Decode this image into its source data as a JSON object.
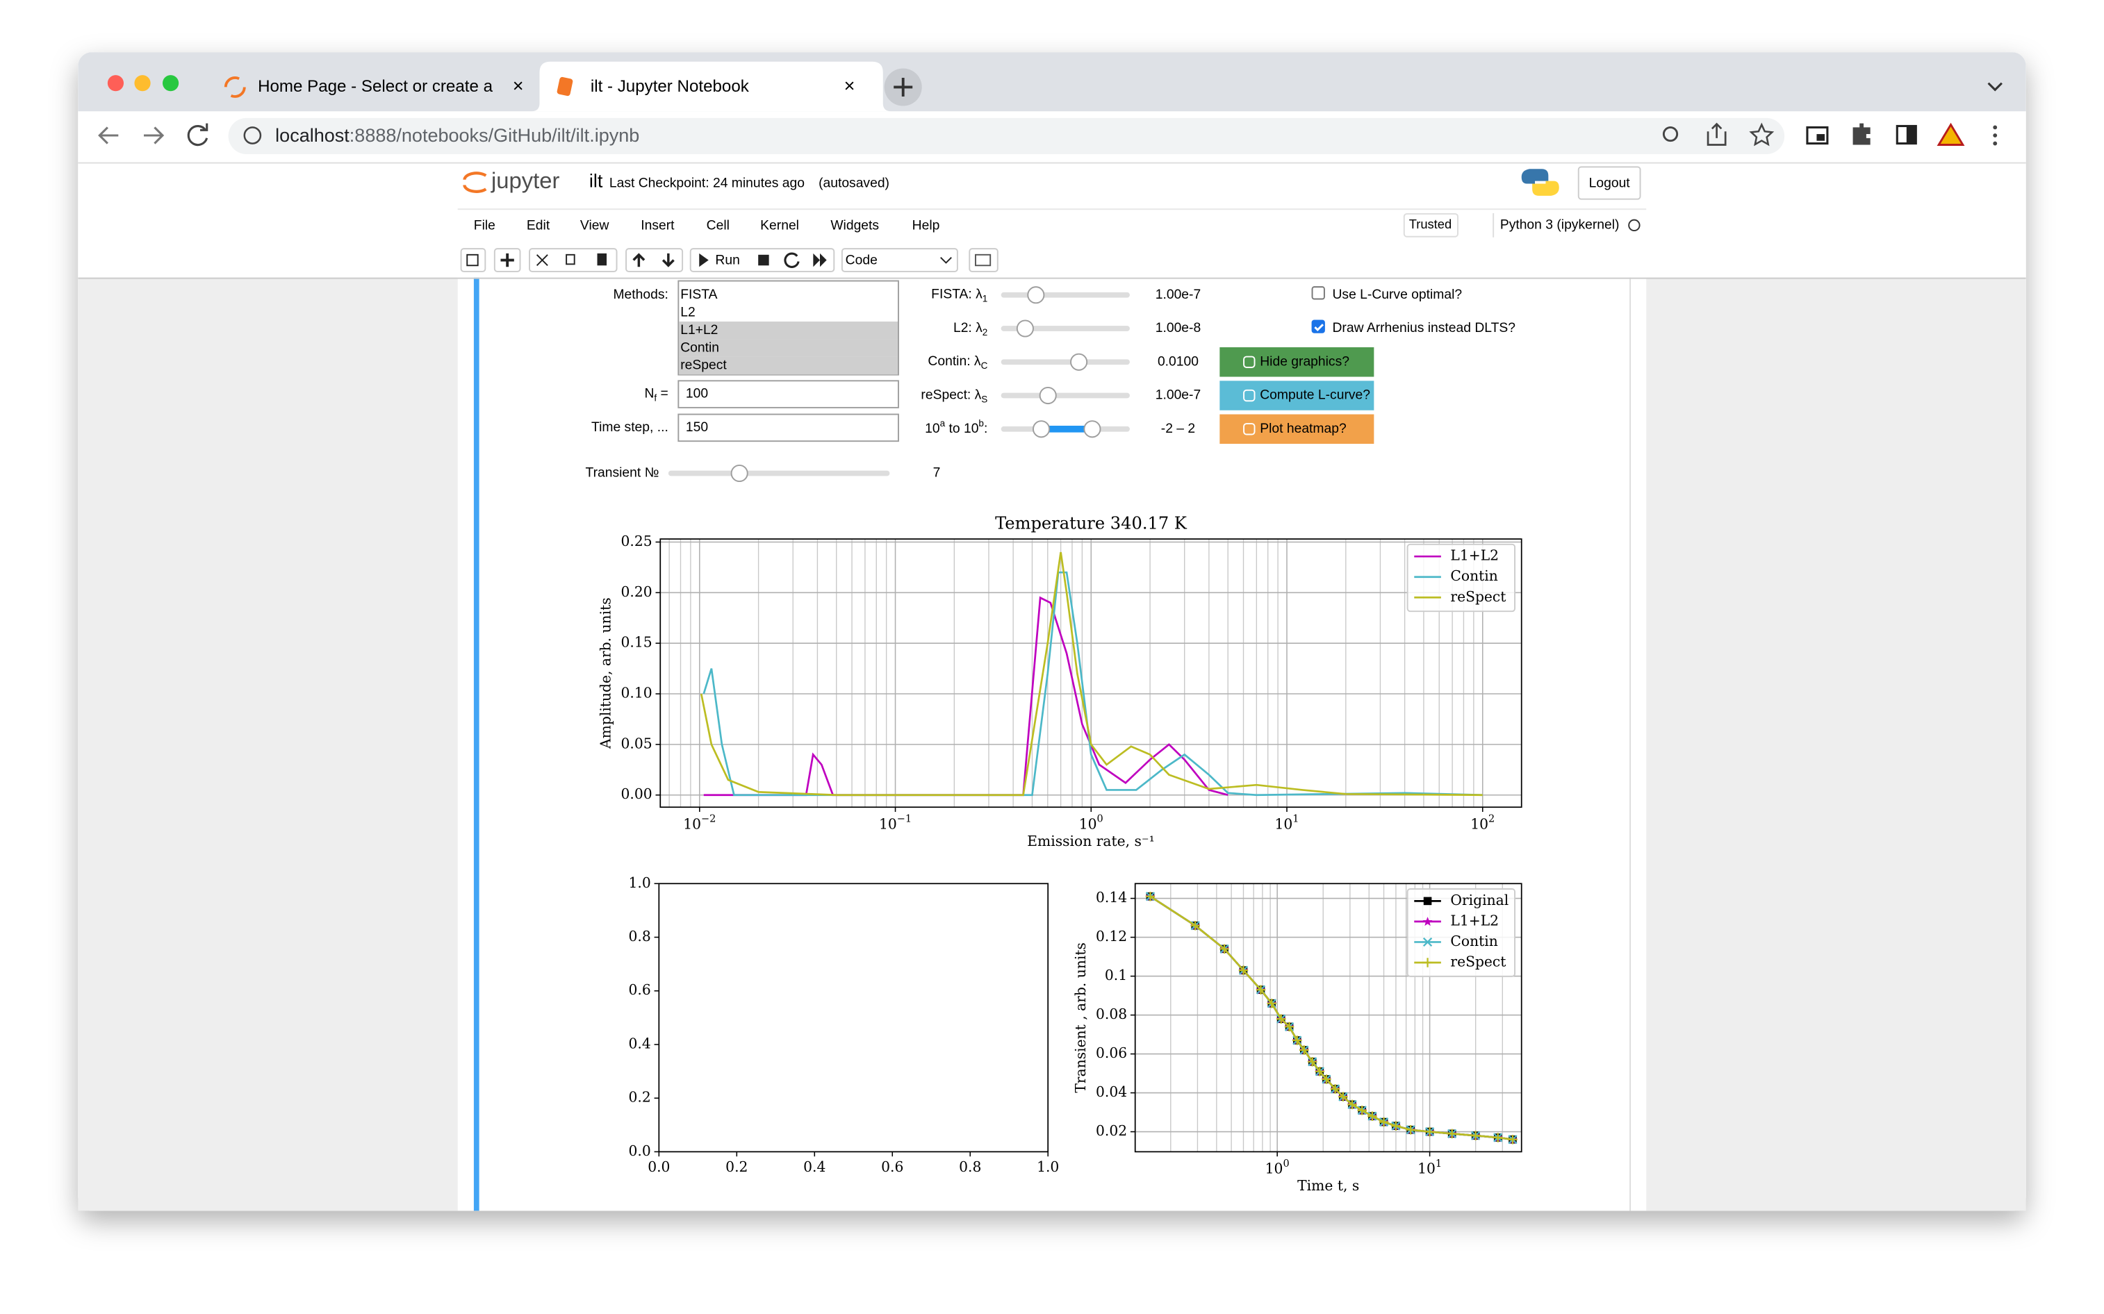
{
  "browser": {
    "tabs": [
      "Home Page - Select or create a",
      "ilt - Jupyter Notebook"
    ],
    "url_host": "localhost",
    "url_rest": ":8888/notebooks/GitHub/ilt/ilt.ipynb"
  },
  "header": {
    "logo": "jupyter",
    "notebook": "ilt",
    "checkpoint": "Last Checkpoint: 24 minutes ago",
    "autosaved": "(autosaved)",
    "logout": "Logout"
  },
  "menu": [
    "File",
    "Edit",
    "View",
    "Insert",
    "Cell",
    "Kernel",
    "Widgets",
    "Help"
  ],
  "kernel": {
    "trusted": "Trusted",
    "name": "Python 3 (ipykernel)"
  },
  "toolbar": {
    "run": "Run",
    "cell_type": "Code"
  },
  "widgets": {
    "methods": {
      "label": "Methods:",
      "options": [
        "FISTA",
        "L2",
        "L1+L2",
        "Contin",
        "reSpect"
      ],
      "selected": [
        false,
        false,
        true,
        true,
        true
      ]
    },
    "inputs": [
      {
        "label_parts": [
          "N",
          "f",
          " ="
        ],
        "script": "sub",
        "value": "100"
      },
      {
        "label_parts": [
          "Time step, ..."
        ],
        "value": "150"
      }
    ],
    "sliders": [
      {
        "label_parts": [
          "FISTA: λ",
          "1"
        ],
        "script": "sub",
        "readout": "1.00e-7"
      },
      {
        "label_parts": [
          "L2: λ",
          "2"
        ],
        "script": "sub",
        "readout": "1.00e-8"
      },
      {
        "label_parts": [
          "Contin: λ",
          "C"
        ],
        "script": "sub",
        "readout": "0.0100"
      },
      {
        "label_parts": [
          "reSpect: λ",
          "S"
        ],
        "script": "sub",
        "readout": "1.00e-7"
      },
      {
        "label_parts": [
          "10",
          "a",
          " to 10",
          "b",
          ":"
        ],
        "script": "sup",
        "readout": "-2 – 2",
        "range": true
      }
    ],
    "checkboxes": [
      {
        "label": "Use L-Curve optimal?",
        "checked": false
      },
      {
        "label": "Draw Arrhenius instead DLTS?",
        "checked": true
      }
    ],
    "buttons": [
      {
        "label": "Hide graphics?",
        "color": "#4f9a4f"
      },
      {
        "label": "Compute L-curve?",
        "color": "#5bbcd6"
      },
      {
        "label": "Plot heatmap?",
        "color": "#f2a14a"
      }
    ],
    "transient": {
      "label": "Transient №",
      "readout": "7"
    }
  },
  "chart_data": [
    {
      "type": "line",
      "title": "Temperature 340.17 K",
      "xlabel": "Emission rate, s⁻¹",
      "ylabel": "Amplitude, arb. units",
      "xscale": "log",
      "xlim": [
        0.0063,
        158
      ],
      "ylim": [
        -0.012,
        0.253
      ],
      "grid": true,
      "legend": "upper right",
      "xticks": [
        {
          "value": 0.01,
          "label": "10",
          "exp": "−2"
        },
        {
          "value": 0.1,
          "label": "10",
          "exp": "−1"
        },
        {
          "value": 1,
          "label": "10",
          "exp": "0"
        },
        {
          "value": 10,
          "label": "10",
          "exp": "1"
        },
        {
          "value": 100,
          "label": "10",
          "exp": "2"
        }
      ],
      "yticks": [
        {
          "value": 0,
          "label": "0.00"
        },
        {
          "value": 0.05,
          "label": "0.05"
        },
        {
          "value": 0.1,
          "label": "0.10"
        },
        {
          "value": 0.15,
          "label": "0.15"
        },
        {
          "value": 0.2,
          "label": "0.20"
        },
        {
          "value": 0.25,
          "label": "0.25"
        }
      ],
      "series": [
        {
          "name": "L1+L2",
          "color": "#bf00bf",
          "x": [
            0.0105,
            0.035,
            0.038,
            0.042,
            0.048,
            0.45,
            0.55,
            0.62,
            0.75,
            0.9,
            1.1,
            1.5,
            2.0,
            2.5,
            3.0,
            4,
            5
          ],
          "values": [
            0,
            0,
            0.04,
            0.03,
            0,
            0,
            0.195,
            0.19,
            0.14,
            0.07,
            0.03,
            0.012,
            0.035,
            0.05,
            0.035,
            0.005,
            0
          ]
        },
        {
          "name": "Contin",
          "color": "#4cb8c8",
          "x": [
            0.0105,
            0.0115,
            0.013,
            0.015,
            0.5,
            0.6,
            0.68,
            0.75,
            0.85,
            1.0,
            1.2,
            1.7,
            2.3,
            3.0,
            4,
            5,
            7,
            40,
            100
          ],
          "values": [
            0.1,
            0.125,
            0.05,
            0,
            0,
            0.12,
            0.22,
            0.22,
            0.15,
            0.04,
            0.005,
            0.005,
            0.025,
            0.04,
            0.02,
            0.002,
            0,
            0.002,
            0
          ]
        },
        {
          "name": "reSpect",
          "color": "#bcbd22",
          "x": [
            0.0102,
            0.0115,
            0.014,
            0.02,
            0.05,
            0.45,
            0.6,
            0.7,
            0.75,
            0.85,
            1.0,
            1.2,
            1.6,
            2.0,
            2.5,
            4,
            7,
            12,
            20,
            100
          ],
          "values": [
            0.1,
            0.05,
            0.015,
            0.003,
            0,
            0,
            0.15,
            0.24,
            0.2,
            0.12,
            0.05,
            0.03,
            0.048,
            0.04,
            0.02,
            0.006,
            0.01,
            0.005,
            0.001,
            0
          ]
        }
      ]
    },
    {
      "type": "line",
      "xscale": "linear",
      "xlim": [
        0,
        1
      ],
      "ylim": [
        0,
        1
      ],
      "grid": false,
      "xticks": [
        {
          "value": 0,
          "label": "0.0"
        },
        {
          "value": 0.2,
          "label": "0.2"
        },
        {
          "value": 0.4,
          "label": "0.4"
        },
        {
          "value": 0.6,
          "label": "0.6"
        },
        {
          "value": 0.8,
          "label": "0.8"
        },
        {
          "value": 1,
          "label": "1.0"
        }
      ],
      "yticks": [
        {
          "value": 0,
          "label": "0.0"
        },
        {
          "value": 0.2,
          "label": "0.2"
        },
        {
          "value": 0.4,
          "label": "0.4"
        },
        {
          "value": 0.6,
          "label": "0.6"
        },
        {
          "value": 0.8,
          "label": "0.8"
        },
        {
          "value": 1,
          "label": "1.0"
        }
      ],
      "series": []
    },
    {
      "type": "line",
      "xlabel": "Time t, s",
      "ylabel": "Transient , arb. units",
      "xscale": "log",
      "xlim": [
        0.117,
        40
      ],
      "ylim": [
        0.0097,
        0.1476
      ],
      "grid": true,
      "legend": "upper right",
      "xticks": [
        {
          "value": 1,
          "label": "10",
          "exp": "0"
        },
        {
          "value": 10,
          "label": "10",
          "exp": "1"
        }
      ],
      "yticks": [
        0.02,
        0.04,
        0.06,
        0.08,
        0.1,
        0.12,
        0.14
      ],
      "x": [
        0.147,
        0.29,
        0.45,
        0.6,
        0.78,
        0.92,
        1.06,
        1.2,
        1.35,
        1.5,
        1.7,
        1.9,
        2.1,
        2.4,
        2.7,
        3.1,
        3.6,
        4.2,
        5,
        6,
        7.5,
        10,
        14,
        20,
        28,
        35
      ],
      "series": [
        {
          "name": "Original",
          "color": "#000000",
          "marker": "square",
          "values": [
            0.141,
            0.126,
            0.114,
            0.103,
            0.093,
            0.086,
            0.078,
            0.074,
            0.067,
            0.062,
            0.056,
            0.051,
            0.047,
            0.042,
            0.038,
            0.034,
            0.031,
            0.028,
            0.025,
            0.023,
            0.021,
            0.02,
            0.019,
            0.018,
            0.017,
            0.016
          ]
        },
        {
          "name": "L1+L2",
          "color": "#bf00bf",
          "marker": "star",
          "values": [
            0.141,
            0.126,
            0.114,
            0.103,
            0.093,
            0.086,
            0.078,
            0.074,
            0.067,
            0.062,
            0.056,
            0.051,
            0.047,
            0.042,
            0.038,
            0.034,
            0.031,
            0.028,
            0.025,
            0.023,
            0.021,
            0.02,
            0.019,
            0.018,
            0.017,
            0.016
          ]
        },
        {
          "name": "Contin",
          "color": "#4cb8c8",
          "marker": "x",
          "values": [
            0.141,
            0.126,
            0.114,
            0.103,
            0.093,
            0.086,
            0.078,
            0.074,
            0.067,
            0.062,
            0.056,
            0.051,
            0.047,
            0.042,
            0.038,
            0.034,
            0.031,
            0.028,
            0.025,
            0.023,
            0.021,
            0.02,
            0.019,
            0.018,
            0.017,
            0.016
          ]
        },
        {
          "name": "reSpect",
          "color": "#bcbd22",
          "marker": "plus",
          "values": [
            0.141,
            0.126,
            0.114,
            0.103,
            0.093,
            0.086,
            0.078,
            0.074,
            0.067,
            0.062,
            0.056,
            0.051,
            0.047,
            0.042,
            0.038,
            0.034,
            0.031,
            0.028,
            0.025,
            0.023,
            0.021,
            0.02,
            0.019,
            0.018,
            0.017,
            0.016
          ]
        }
      ]
    }
  ]
}
